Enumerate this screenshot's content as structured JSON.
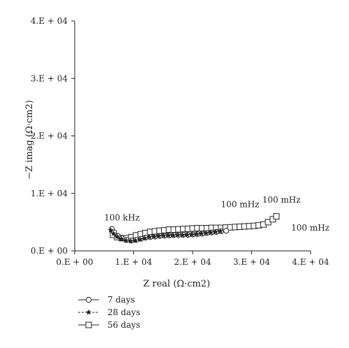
{
  "chart_data": {
    "type": "scatter",
    "xlabel": "Z real (Ω·cm2)",
    "ylabel": "−Z imag (Ω·cm2)",
    "xlim": [
      0,
      40000
    ],
    "ylim": [
      0,
      40000
    ],
    "x_ticks": [
      0,
      10000,
      20000,
      30000,
      40000
    ],
    "y_ticks": [
      0,
      10000,
      20000,
      30000,
      40000
    ],
    "x_tick_labels": [
      "0.E + 00",
      "1.E + 04",
      "2.E + 04",
      "3.E + 04",
      "4.E + 04"
    ],
    "y_tick_labels": [
      "0.E + 00",
      "1.E + 04",
      "2.E + 04",
      "3.E + 04",
      "4.E + 04"
    ],
    "grid": false,
    "legend_position": "bottom-left",
    "series": [
      {
        "name": "7 days",
        "marker": "circle",
        "points": [
          [
            6300,
            3800
          ],
          [
            6700,
            3200
          ],
          [
            7300,
            2600
          ],
          [
            8000,
            2200
          ],
          [
            8800,
            1900
          ],
          [
            9600,
            1800
          ],
          [
            10400,
            1900
          ],
          [
            11200,
            2100
          ],
          [
            12000,
            2300
          ],
          [
            12800,
            2400
          ],
          [
            13600,
            2500
          ],
          [
            14400,
            2600
          ],
          [
            15200,
            2650
          ],
          [
            16000,
            2700
          ],
          [
            16800,
            2750
          ],
          [
            17600,
            2750
          ],
          [
            18400,
            2800
          ],
          [
            19200,
            2800
          ],
          [
            20000,
            2850
          ],
          [
            20800,
            2900
          ],
          [
            21600,
            3000
          ],
          [
            22400,
            3100
          ],
          [
            23200,
            3200
          ],
          [
            24000,
            3300
          ],
          [
            24800,
            3400
          ],
          [
            25700,
            3500
          ]
        ]
      },
      {
        "name": "28 days",
        "marker": "star",
        "points": [
          [
            6100,
            3600
          ],
          [
            6600,
            3000
          ],
          [
            7200,
            2500
          ],
          [
            7900,
            2100
          ],
          [
            8700,
            1800
          ],
          [
            9500,
            1700
          ],
          [
            10300,
            1800
          ],
          [
            11100,
            2000
          ],
          [
            11900,
            2200
          ],
          [
            12700,
            2400
          ],
          [
            13500,
            2500
          ],
          [
            14300,
            2600
          ],
          [
            15100,
            2650
          ],
          [
            15900,
            2700
          ],
          [
            16700,
            2700
          ],
          [
            17500,
            2750
          ],
          [
            18300,
            2750
          ],
          [
            19100,
            2800
          ],
          [
            19900,
            2850
          ],
          [
            20700,
            2900
          ],
          [
            21500,
            3000
          ],
          [
            22300,
            3100
          ],
          [
            23100,
            3200
          ],
          [
            23900,
            3300
          ],
          [
            24700,
            3400
          ]
        ]
      },
      {
        "name": "56 days",
        "marker": "square",
        "points": [
          [
            6500,
            2800
          ],
          [
            7200,
            2400
          ],
          [
            8000,
            2200
          ],
          [
            8800,
            2200
          ],
          [
            9600,
            2400
          ],
          [
            10400,
            2700
          ],
          [
            11200,
            2900
          ],
          [
            12000,
            3100
          ],
          [
            12800,
            3300
          ],
          [
            13600,
            3400
          ],
          [
            14400,
            3500
          ],
          [
            15200,
            3600
          ],
          [
            16000,
            3700
          ],
          [
            16800,
            3700
          ],
          [
            17600,
            3750
          ],
          [
            18400,
            3800
          ],
          [
            19200,
            3850
          ],
          [
            20000,
            3900
          ],
          [
            20800,
            3950
          ],
          [
            21600,
            3950
          ],
          [
            22400,
            3950
          ],
          [
            23200,
            4000
          ],
          [
            24000,
            4000
          ],
          [
            24800,
            4000
          ],
          [
            25600,
            4050
          ],
          [
            26400,
            4100
          ],
          [
            27200,
            4150
          ],
          [
            28000,
            4200
          ],
          [
            28800,
            4250
          ],
          [
            29600,
            4300
          ],
          [
            30400,
            4350
          ],
          [
            31200,
            4450
          ],
          [
            32000,
            4600
          ],
          [
            32800,
            5000
          ],
          [
            33600,
            5500
          ],
          [
            34200,
            6000
          ]
        ]
      }
    ],
    "annotations": [
      {
        "text": "100 kHz",
        "x": 5000,
        "y": 5300
      },
      {
        "text": "100 mHz",
        "x": 24800,
        "y": 7600
      },
      {
        "text": "100 mHz",
        "x": 31800,
        "y": 8400
      },
      {
        "text": "100 mHz",
        "x": 36700,
        "y": 3500
      }
    ]
  }
}
